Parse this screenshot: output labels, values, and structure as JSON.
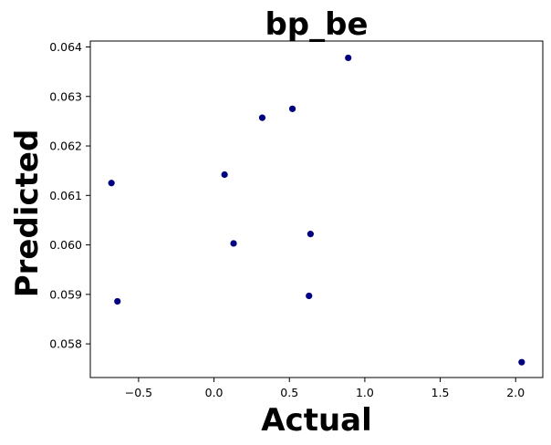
{
  "chart_data": {
    "type": "scatter",
    "title": "bp_be",
    "xlabel": "Actual",
    "ylabel": "Predicted",
    "xlim": [
      -0.82,
      2.18
    ],
    "ylim": [
      0.05732,
      0.06412
    ],
    "x_ticks": [
      -0.5,
      0.0,
      0.5,
      1.0,
      1.5,
      2.0
    ],
    "x_tick_labels": [
      "−0.5",
      "0.0",
      "0.5",
      "1.0",
      "1.5",
      "2.0"
    ],
    "y_ticks": [
      0.058,
      0.059,
      0.06,
      0.061,
      0.062,
      0.063,
      0.064
    ],
    "y_tick_labels": [
      "0.058",
      "0.059",
      "0.060",
      "0.061",
      "0.062",
      "0.063",
      "0.064"
    ],
    "grid": false,
    "marker_color": "#000080",
    "points": [
      {
        "x": -0.68,
        "y": 0.06125
      },
      {
        "x": -0.64,
        "y": 0.05886
      },
      {
        "x": 0.07,
        "y": 0.06142
      },
      {
        "x": 0.13,
        "y": 0.06003
      },
      {
        "x": 0.32,
        "y": 0.06257
      },
      {
        "x": 0.52,
        "y": 0.06275
      },
      {
        "x": 0.63,
        "y": 0.05897
      },
      {
        "x": 0.64,
        "y": 0.06022
      },
      {
        "x": 0.89,
        "y": 0.06378
      },
      {
        "x": 2.04,
        "y": 0.05763
      }
    ]
  }
}
